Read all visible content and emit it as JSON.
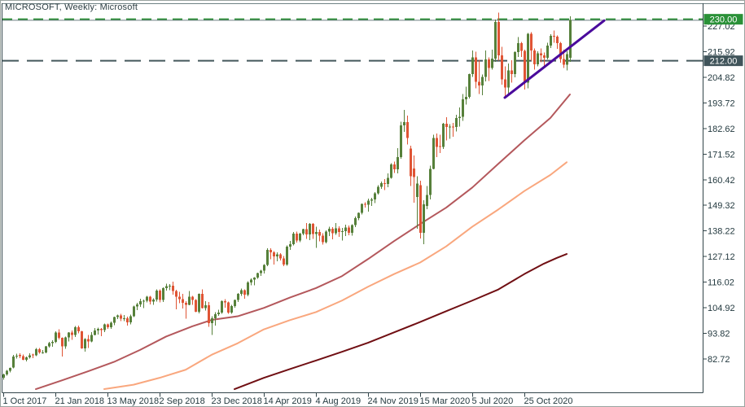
{
  "chart_data": {
    "type": "candlestick",
    "title": "MICROSOFT, Weekly: Microsoft",
    "symbol": "MICROSOFT",
    "timeframe": "Weekly",
    "legend_position": "top-left",
    "grid": false,
    "y_axis": {
      "range": [
        68.2,
        232.7
      ],
      "tick_step": 11.1,
      "ticks": [
        "227.02",
        "215.92",
        "204.82",
        "193.72",
        "182.62",
        "171.52",
        "160.42",
        "149.32",
        "138.22",
        "127.12",
        "116.02",
        "104.92",
        "93.82",
        "82.72"
      ]
    },
    "x_axis": {
      "weeks_per_tick": 16,
      "ticks": [
        {
          "week": 0,
          "label": "1 Oct 2017"
        },
        {
          "week": 16,
          "label": "21 Jan 2018"
        },
        {
          "week": 32,
          "label": "13 May 2018"
        },
        {
          "week": 48,
          "label": "2 Sep 2018"
        },
        {
          "week": 64,
          "label": "23 Dec 2018"
        },
        {
          "week": 80,
          "label": "14 Apr 2019"
        },
        {
          "week": 96,
          "label": "4 Aug 2019"
        },
        {
          "week": 112,
          "label": "24 Nov 2019"
        },
        {
          "week": 128,
          "label": "15 Mar 2020"
        },
        {
          "week": 144,
          "label": "5 Jul 2020"
        },
        {
          "week": 160,
          "label": "25 Oct 2020"
        }
      ]
    },
    "levels": [
      {
        "price": 230.0,
        "label": "230.00",
        "style": "dashed",
        "color": "#2e9139",
        "width": 2,
        "dash": "12 7",
        "badge_bg": "#2a9138",
        "badge_text_color": "#ffffff"
      },
      {
        "price": 229.55,
        "label": "",
        "style": "solid",
        "color": "#6b7d80",
        "width": 1,
        "dash": "",
        "badge_bg": "",
        "badge_text_color": ""
      },
      {
        "price": 212.0,
        "label": "212.00",
        "style": "dashed",
        "color": "#44585c",
        "width": 2,
        "dash": "20 10",
        "badge_bg": "#40545a",
        "badge_text_color": "#ffffff"
      }
    ],
    "trendline": {
      "from_week": 154,
      "from_price": 196.0,
      "to_week": 184.5,
      "to_price": 229.4
    },
    "moving_averages": [
      {
        "name": "ma-fast",
        "color": "#b4585c",
        "width": 2,
        "points": [
          [
            10,
            69.6
          ],
          [
            18,
            73.4
          ],
          [
            26,
            77.3
          ],
          [
            34,
            81.4
          ],
          [
            42,
            86.6
          ],
          [
            50,
            92.4
          ],
          [
            58,
            96.8
          ],
          [
            64,
            99.6
          ],
          [
            72,
            101.2
          ],
          [
            80,
            104.8
          ],
          [
            88,
            109.3
          ],
          [
            96,
            113.4
          ],
          [
            104,
            118.6
          ],
          [
            112,
            126.0
          ],
          [
            120,
            133.8
          ],
          [
            128,
            141.2
          ],
          [
            136,
            148.3
          ],
          [
            144,
            157.0
          ],
          [
            152,
            167.3
          ],
          [
            160,
            177.5
          ],
          [
            168,
            187.2
          ],
          [
            174,
            197.4
          ]
        ]
      },
      {
        "name": "ma-mid",
        "color": "#f9a77e",
        "width": 2,
        "points": [
          [
            31,
            69.6
          ],
          [
            40,
            71.5
          ],
          [
            48,
            74.5
          ],
          [
            56,
            78.0
          ],
          [
            64,
            84.5
          ],
          [
            72,
            89.5
          ],
          [
            80,
            95.5
          ],
          [
            88,
            99.5
          ],
          [
            96,
            103.0
          ],
          [
            104,
            108.0
          ],
          [
            112,
            114.0
          ],
          [
            120,
            119.5
          ],
          [
            128,
            124.5
          ],
          [
            136,
            131.5
          ],
          [
            144,
            140.0
          ],
          [
            152,
            147.5
          ],
          [
            160,
            155.5
          ],
          [
            168,
            162.5
          ],
          [
            173,
            168.0
          ]
        ]
      },
      {
        "name": "ma-slow",
        "color": "#700f13",
        "width": 2,
        "points": [
          [
            71,
            69.6
          ],
          [
            80,
            74.5
          ],
          [
            88,
            78.3
          ],
          [
            96,
            82.0
          ],
          [
            104,
            85.8
          ],
          [
            112,
            89.7
          ],
          [
            120,
            94.2
          ],
          [
            128,
            98.7
          ],
          [
            136,
            103.4
          ],
          [
            144,
            108.0
          ],
          [
            152,
            112.8
          ],
          [
            160,
            119.5
          ],
          [
            166,
            124.0
          ],
          [
            170,
            126.5
          ],
          [
            173,
            128.2
          ]
        ]
      }
    ],
    "colors": {
      "up": "#56803a",
      "down": "#df5434",
      "trendline": "#4a0a9c",
      "axis_text": "#23393f",
      "frame": "#32454a",
      "window_top_line": "#6f8285"
    },
    "candles": [
      [
        74.5,
        76.4,
        73.6,
        76.0
      ],
      [
        76.0,
        77.9,
        75.5,
        77.5
      ],
      [
        77.5,
        79.0,
        76.8,
        78.8
      ],
      [
        78.9,
        84.5,
        78.6,
        83.8
      ],
      [
        83.8,
        84.9,
        82.9,
        84.1
      ],
      [
        84.5,
        85.1,
        83.0,
        83.9
      ],
      [
        83.9,
        84.7,
        82.2,
        82.4
      ],
      [
        82.4,
        83.7,
        81.6,
        83.3
      ],
      [
        83.3,
        85.1,
        82.8,
        84.3
      ],
      [
        84.6,
        85.0,
        83.1,
        84.2
      ],
      [
        84.2,
        87.5,
        83.9,
        86.9
      ],
      [
        86.9,
        87.5,
        85.0,
        85.5
      ],
      [
        85.3,
        86.5,
        85.0,
        85.5
      ],
      [
        85.5,
        88.4,
        85.2,
        88.2
      ],
      [
        88.2,
        90.0,
        87.7,
        89.6
      ],
      [
        89.6,
        90.8,
        88.0,
        90.0
      ],
      [
        90.0,
        94.6,
        89.6,
        94.1
      ],
      [
        94.1,
        95.5,
        91.1,
        91.8
      ],
      [
        91.8,
        92.0,
        83.8,
        88.2
      ],
      [
        88.2,
        92.4,
        87.1,
        92.0
      ],
      [
        92.0,
        94.3,
        90.2,
        94.1
      ],
      [
        94.1,
        95.1,
        90.9,
        93.1
      ],
      [
        93.1,
        96.9,
        92.2,
        96.5
      ],
      [
        96.5,
        97.2,
        93.8,
        94.6
      ],
      [
        94.6,
        94.8,
        87.0,
        87.2
      ],
      [
        87.2,
        91.6,
        85.9,
        91.3
      ],
      [
        91.3,
        93.0,
        87.5,
        90.2
      ],
      [
        90.2,
        94.4,
        89.9,
        93.1
      ],
      [
        93.1,
        96.1,
        92.9,
        95.0
      ],
      [
        95.0,
        96.3,
        93.3,
        95.8
      ],
      [
        95.8,
        96.1,
        92.5,
        95.2
      ],
      [
        95.2,
        98.0,
        94.4,
        97.7
      ],
      [
        97.7,
        98.1,
        95.8,
        96.4
      ],
      [
        96.4,
        98.9,
        95.7,
        98.4
      ],
      [
        98.4,
        101.0,
        97.3,
        100.8
      ],
      [
        100.8,
        102.0,
        100.0,
        101.6
      ],
      [
        101.6,
        102.3,
        99.1,
        100.1
      ],
      [
        100.1,
        101.7,
        99.0,
        100.4
      ],
      [
        100.4,
        101.1,
        97.2,
        98.6
      ],
      [
        98.6,
        101.9,
        97.7,
        101.2
      ],
      [
        101.2,
        105.8,
        100.9,
        105.4
      ],
      [
        105.4,
        107.1,
        103.9,
        106.3
      ],
      [
        106.3,
        108.8,
        105.2,
        107.7
      ],
      [
        107.7,
        108.5,
        104.8,
        108.0
      ],
      [
        108.0,
        110.0,
        107.2,
        109.7
      ],
      [
        109.7,
        110.1,
        106.3,
        107.6
      ],
      [
        107.6,
        108.9,
        106.2,
        108.4
      ],
      [
        108.4,
        112.8,
        107.5,
        112.3
      ],
      [
        112.3,
        112.8,
        107.2,
        108.2
      ],
      [
        108.2,
        113.7,
        107.3,
        113.4
      ],
      [
        113.4,
        115.3,
        112.4,
        114.3
      ],
      [
        114.3,
        115.1,
        112.5,
        114.4
      ],
      [
        114.4,
        116.2,
        110.6,
        112.1
      ],
      [
        112.1,
        112.6,
        104.2,
        109.6
      ],
      [
        109.6,
        111.8,
        106.9,
        108.7
      ],
      [
        108.7,
        110.9,
        104.6,
        107.0
      ],
      [
        107.0,
        107.7,
        100.1,
        106.2
      ],
      [
        106.2,
        112.2,
        105.9,
        109.6
      ],
      [
        109.6,
        110.0,
        106.1,
        108.3
      ],
      [
        108.3,
        108.7,
        102.9,
        103.1
      ],
      [
        103.1,
        111.1,
        102.5,
        110.9
      ],
      [
        110.9,
        112.9,
        104.5,
        104.8
      ],
      [
        104.8,
        107.8,
        103.6,
        106.0
      ],
      [
        106.0,
        107.3,
        96.6,
        98.2
      ],
      [
        98.2,
        101.2,
        93.0,
        100.4
      ],
      [
        100.4,
        102.9,
        97.2,
        102.1
      ],
      [
        102.1,
        104.1,
        101.3,
        102.8
      ],
      [
        102.8,
        108.1,
        102.3,
        107.7
      ],
      [
        107.7,
        108.7,
        104.9,
        107.2
      ],
      [
        107.2,
        107.5,
        102.2,
        102.8
      ],
      [
        102.8,
        106.1,
        102.3,
        105.7
      ],
      [
        105.7,
        108.5,
        105.0,
        108.2
      ],
      [
        108.2,
        111.2,
        107.3,
        111.0
      ],
      [
        111.0,
        113.2,
        110.0,
        112.5
      ],
      [
        112.5,
        112.9,
        108.8,
        110.5
      ],
      [
        110.5,
        116.3,
        109.9,
        115.9
      ],
      [
        115.9,
        117.6,
        114.6,
        117.1
      ],
      [
        117.1,
        118.2,
        114.6,
        117.9
      ],
      [
        117.9,
        120.1,
        117.5,
        119.9
      ],
      [
        119.9,
        121.3,
        118.6,
        121.0
      ],
      [
        121.0,
        123.8,
        119.8,
        123.4
      ],
      [
        123.4,
        130.6,
        123.0,
        129.9
      ],
      [
        129.9,
        130.6,
        126.0,
        128.9
      ],
      [
        128.9,
        129.4,
        123.6,
        127.1
      ],
      [
        127.1,
        128.9,
        125.1,
        128.1
      ],
      [
        128.1,
        128.6,
        125.4,
        126.2
      ],
      [
        126.2,
        127.4,
        123.0,
        123.7
      ],
      [
        123.7,
        131.9,
        123.1,
        131.4
      ],
      [
        131.4,
        133.8,
        130.0,
        132.5
      ],
      [
        132.5,
        137.7,
        132.0,
        137.0
      ],
      [
        137.0,
        137.9,
        133.1,
        134.0
      ],
      [
        134.0,
        137.4,
        133.3,
        137.1
      ],
      [
        137.1,
        139.2,
        136.3,
        138.9
      ],
      [
        138.9,
        141.7,
        134.7,
        136.6
      ],
      [
        136.6,
        141.6,
        134.2,
        141.3
      ],
      [
        141.3,
        141.7,
        134.7,
        136.9
      ],
      [
        136.9,
        140.1,
        130.8,
        137.7
      ],
      [
        137.7,
        138.8,
        133.7,
        136.1
      ],
      [
        136.1,
        137.2,
        132.2,
        133.4
      ],
      [
        133.4,
        138.4,
        132.8,
        137.9
      ],
      [
        137.9,
        140.0,
        136.0,
        139.1
      ],
      [
        139.1,
        139.8,
        134.5,
        137.3
      ],
      [
        137.3,
        141.7,
        136.5,
        139.4
      ],
      [
        139.4,
        140.2,
        135.6,
        137.7
      ],
      [
        137.7,
        139.5,
        134.1,
        138.1
      ],
      [
        138.1,
        141.0,
        136.0,
        139.7
      ],
      [
        139.7,
        140.6,
        136.3,
        137.4
      ],
      [
        137.4,
        141.1,
        136.2,
        140.7
      ],
      [
        140.7,
        144.5,
        139.8,
        143.7
      ],
      [
        143.7,
        146.2,
        142.8,
        146.0
      ],
      [
        146.0,
        150.1,
        145.4,
        150.0
      ],
      [
        150.0,
        150.6,
        148.3,
        149.6
      ],
      [
        149.6,
        152.3,
        146.6,
        151.4
      ],
      [
        151.4,
        152.5,
        149.0,
        151.8
      ],
      [
        151.8,
        155.0,
        150.2,
        154.5
      ],
      [
        154.5,
        158.1,
        154.0,
        157.4
      ],
      [
        157.4,
        159.6,
        156.5,
        159.0
      ],
      [
        159.0,
        160.7,
        156.0,
        158.6
      ],
      [
        158.6,
        163.2,
        157.2,
        161.3
      ],
      [
        161.3,
        167.5,
        160.8,
        167.1
      ],
      [
        167.1,
        168.2,
        163.3,
        165.0
      ],
      [
        165.0,
        174.1,
        163.1,
        170.2
      ],
      [
        170.2,
        185.6,
        169.5,
        183.9
      ],
      [
        183.9,
        190.7,
        181.2,
        185.4
      ],
      [
        185.4,
        188.2,
        175.7,
        178.6
      ],
      [
        174.0,
        175.2,
        157.6,
        162.0
      ],
      [
        165.3,
        170.9,
        150.4,
        161.6
      ],
      [
        153.0,
        161.9,
        139.1,
        158.8
      ],
      [
        158.0,
        160.0,
        135.0,
        137.4
      ],
      [
        137.4,
        151.5,
        132.5,
        149.7
      ],
      [
        149.0,
        157.6,
        147.6,
        153.8
      ],
      [
        153.8,
        166.5,
        151.8,
        165.1
      ],
      [
        165.1,
        180.0,
        164.9,
        178.6
      ],
      [
        178.6,
        180.4,
        170.2,
        174.6
      ],
      [
        175.0,
        179.9,
        171.9,
        174.6
      ],
      [
        174.6,
        185.0,
        173.8,
        184.7
      ],
      [
        184.7,
        187.5,
        177.5,
        183.2
      ],
      [
        183.2,
        184.5,
        178.1,
        183.5
      ],
      [
        183.5,
        185.0,
        179.1,
        183.3
      ],
      [
        183.3,
        188.6,
        181.3,
        187.2
      ],
      [
        187.2,
        191.7,
        183.5,
        187.7
      ],
      [
        187.7,
        197.6,
        186.0,
        195.2
      ],
      [
        195.2,
        200.8,
        192.9,
        196.3
      ],
      [
        196.3,
        206.4,
        195.6,
        206.3
      ],
      [
        206.3,
        216.4,
        205.0,
        213.5
      ],
      [
        213.5,
        215.9,
        200.0,
        202.9
      ],
      [
        202.9,
        212.3,
        197.5,
        201.3
      ],
      [
        201.3,
        206.0,
        197.0,
        205.0
      ],
      [
        205.0,
        216.4,
        203.1,
        212.5
      ],
      [
        212.5,
        213.4,
        203.3,
        208.9
      ],
      [
        208.9,
        216.8,
        208.1,
        213.0
      ],
      [
        213.0,
        229.8,
        211.5,
        228.9
      ],
      [
        228.9,
        232.9,
        212.0,
        214.3
      ],
      [
        214.3,
        218.0,
        201.6,
        204.0
      ],
      [
        204.0,
        209.5,
        196.3,
        200.4
      ],
      [
        200.4,
        210.9,
        196.9,
        207.8
      ],
      [
        207.8,
        212.2,
        202.5,
        206.2
      ],
      [
        206.2,
        216.1,
        204.8,
        215.8
      ],
      [
        215.8,
        222.3,
        213.6,
        219.7
      ],
      [
        219.7,
        220.2,
        213.7,
        216.2
      ],
      [
        216.2,
        216.9,
        199.6,
        202.5
      ],
      [
        202.5,
        224.1,
        200.1,
        223.7
      ],
      [
        223.7,
        224.4,
        212.1,
        216.5
      ],
      [
        216.5,
        217.3,
        208.2,
        210.4
      ],
      [
        210.4,
        216.1,
        209.5,
        215.2
      ],
      [
        215.2,
        217.4,
        211.3,
        214.4
      ],
      [
        214.4,
        215.6,
        209.8,
        213.3
      ],
      [
        213.3,
        219.8,
        212.5,
        218.6
      ],
      [
        218.6,
        223.6,
        217.5,
        222.8
      ],
      [
        222.8,
        225.1,
        219.9,
        222.4
      ],
      [
        222.4,
        223.0,
        217.1,
        219.6
      ],
      [
        219.6,
        220.1,
        211.1,
        212.7
      ],
      [
        212.7,
        216.8,
        208.9,
        210.3
      ],
      [
        210.3,
        216.1,
        207.9,
        214.9
      ],
      [
        213.3,
        231.2,
        211.6,
        229.7
      ]
    ]
  }
}
